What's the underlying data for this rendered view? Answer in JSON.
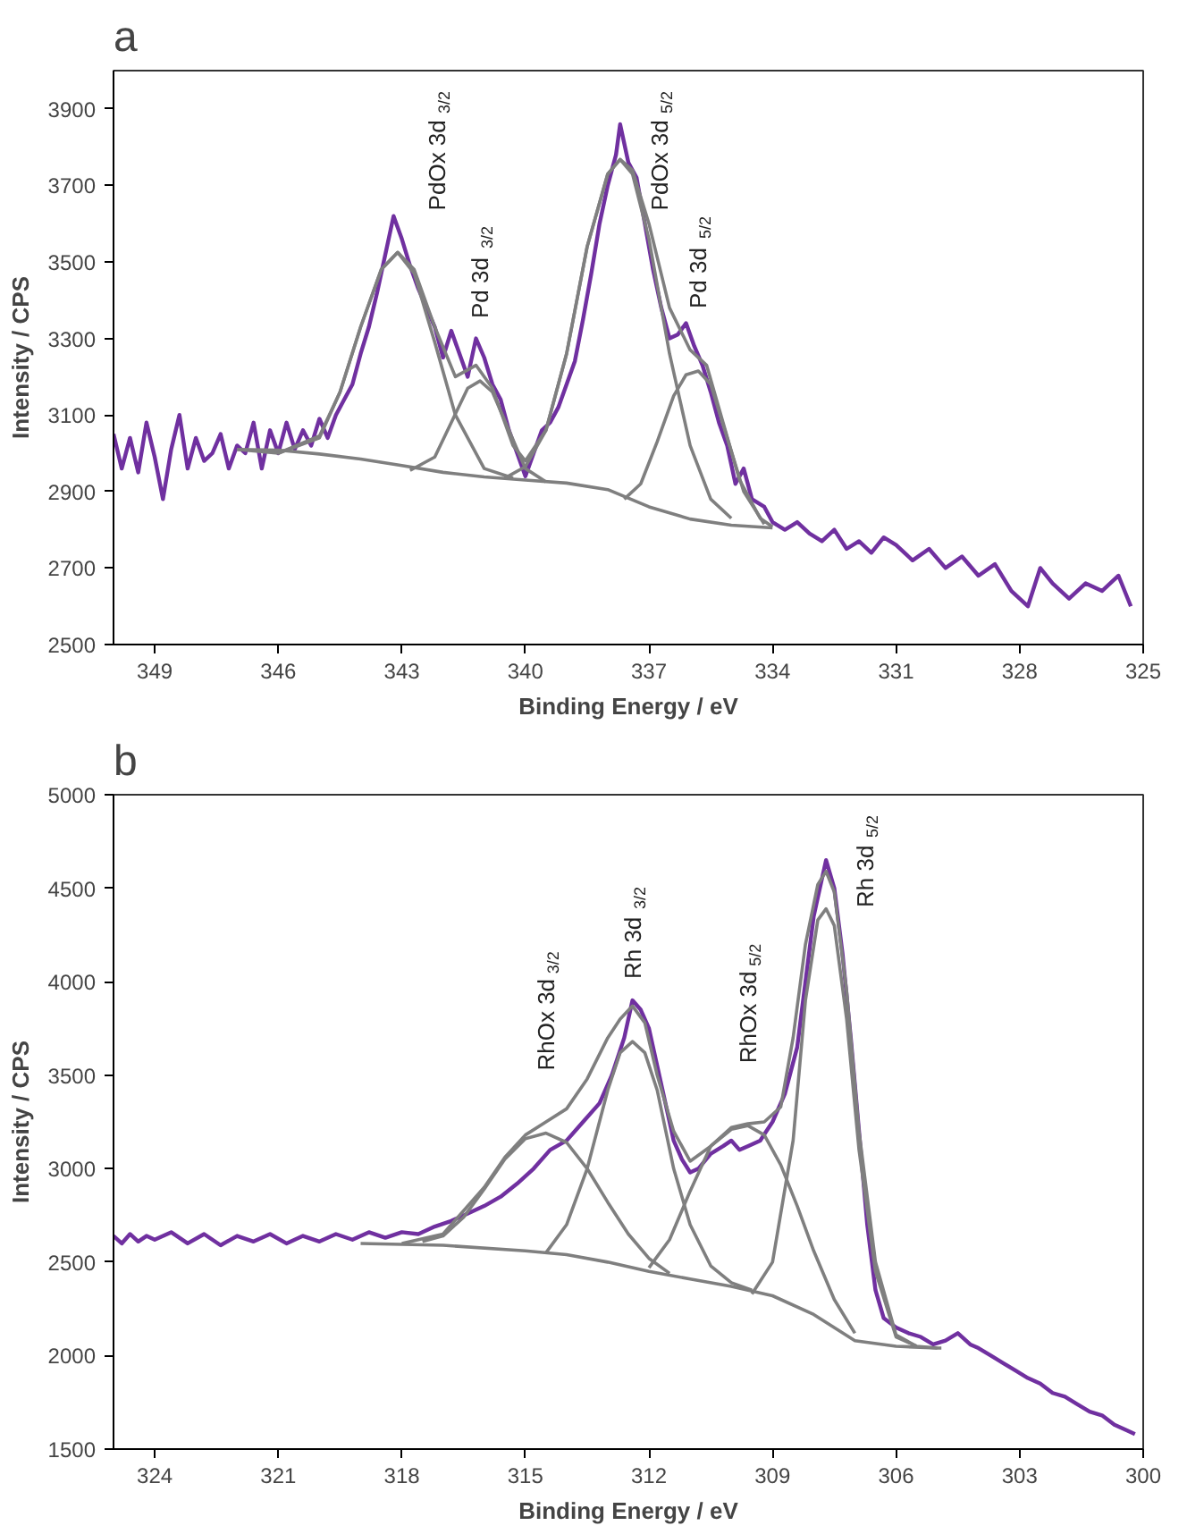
{
  "chart_data": [
    {
      "type": "line",
      "title": "a",
      "xlabel": "Binding Energy / eV",
      "ylabel": "Intensity / CPS",
      "xlim": [
        350,
        325
      ],
      "xticks": [
        349,
        346,
        343,
        340,
        337,
        334,
        331,
        328,
        325
      ],
      "ylim": [
        2500,
        4000
      ],
      "yticks": [
        2500,
        2700,
        2900,
        3100,
        3300,
        3500,
        3700,
        3900
      ],
      "grid": false,
      "annotations": [
        {
          "text": "PdOx 3d$_{3/2}$",
          "x": 343.1,
          "y": 3525
        },
        {
          "text": "Pd 3d$_{3/2}$",
          "x": 341.1,
          "y": 3189
        },
        {
          "text": "PdOx 3d$_{5/2}$",
          "x": 337.7,
          "y": 3768
        },
        {
          "text": "Pd 3d$_{5/2}$",
          "x": 335.8,
          "y": 3215
        }
      ],
      "series": [
        {
          "color": "#7030a0",
          "x": [
            350,
            349.8,
            349.6,
            349.4,
            349.2,
            349,
            348.8,
            348.6,
            348.4,
            348.2,
            348,
            347.8,
            347.6,
            347.4,
            347.2,
            347,
            346.8,
            346.6,
            346.4,
            346.2,
            346,
            345.8,
            345.6,
            345.4,
            345.2,
            345,
            344.8,
            344.6,
            344.4,
            344.2,
            344,
            343.8,
            343.6,
            343.4,
            343.2,
            343,
            342.8,
            342.6,
            342.4,
            342.2,
            342,
            341.8,
            341.6,
            341.4,
            341.2,
            341,
            340.8,
            340.6,
            340.4,
            340.2,
            340,
            339.8,
            339.6,
            339.4,
            339.2,
            339,
            338.8,
            338.6,
            338.4,
            338.2,
            338,
            337.8,
            337.7,
            337.5,
            337.3,
            337.1,
            336.9,
            336.7,
            336.5,
            336.3,
            336.1,
            335.9,
            335.7,
            335.5,
            335.3,
            335.1,
            334.9,
            334.7,
            334.5,
            334.2,
            334,
            333.7,
            333.4,
            333.1,
            332.8,
            332.5,
            332.2,
            331.9,
            331.6,
            331.3,
            331,
            330.6,
            330.2,
            329.8,
            329.4,
            329,
            328.6,
            328.2,
            327.8,
            327.5,
            327.2,
            326.8,
            326.4,
            326,
            325.6,
            325.3
          ],
          "values": [
            3050,
            2960,
            3040,
            2950,
            3080,
            2990,
            2880,
            3010,
            3100,
            2960,
            3040,
            2980,
            3000,
            3050,
            2960,
            3020,
            3000,
            3080,
            2960,
            3060,
            3000,
            3080,
            3010,
            3060,
            3020,
            3090,
            3040,
            3100,
            3140,
            3180,
            3260,
            3330,
            3420,
            3520,
            3620,
            3560,
            3490,
            3430,
            3380,
            3330,
            3250,
            3320,
            3260,
            3200,
            3300,
            3250,
            3180,
            3140,
            3060,
            3000,
            2940,
            3000,
            3060,
            3080,
            3120,
            3180,
            3240,
            3350,
            3470,
            3600,
            3700,
            3780,
            3860,
            3760,
            3720,
            3600,
            3480,
            3380,
            3300,
            3310,
            3340,
            3280,
            3230,
            3160,
            3080,
            3020,
            2920,
            2960,
            2880,
            2860,
            2820,
            2800,
            2820,
            2790,
            2770,
            2800,
            2750,
            2770,
            2740,
            2780,
            2760,
            2720,
            2750,
            2700,
            2730,
            2680,
            2710,
            2640,
            2600,
            2700,
            2660,
            2620,
            2660,
            2640,
            2680,
            2600
          ]
        },
        {
          "color": "#7f7f7f",
          "x": [
            347,
            346,
            345,
            344,
            343,
            342,
            341,
            340,
            339,
            338,
            337,
            336,
            335,
            334
          ],
          "values": [
            3010,
            3008,
            2998,
            2985,
            2968,
            2950,
            2938,
            2930,
            2922,
            2905,
            2860,
            2828,
            2812,
            2805
          ]
        },
        {
          "color": "#7f7f7f",
          "x": [
            346,
            345,
            344.5,
            344,
            343.5,
            343.1,
            342.7,
            342.2,
            341.7,
            341,
            340.3
          ],
          "values": [
            3000,
            3040,
            3160,
            3330,
            3480,
            3525,
            3470,
            3290,
            3100,
            2960,
            2935
          ]
        },
        {
          "color": "#7f7f7f",
          "x": [
            342.8,
            342.2,
            341.8,
            341.4,
            341.1,
            340.8,
            340.4,
            340,
            339.5
          ],
          "values": [
            2955,
            2990,
            3080,
            3170,
            3189,
            3160,
            3060,
            2960,
            2925
          ]
        },
        {
          "color": "#7f7f7f",
          "x": [
            340.5,
            340,
            339.5,
            339,
            338.5,
            338,
            337.7,
            337.4,
            337,
            336.5,
            336,
            335.5,
            335
          ],
          "values": [
            2935,
            2965,
            3060,
            3260,
            3540,
            3730,
            3768,
            3730,
            3560,
            3260,
            3020,
            2880,
            2830
          ]
        },
        {
          "color": "#7f7f7f",
          "x": [
            337.6,
            337.2,
            336.8,
            336.4,
            336.1,
            335.8,
            335.5,
            335.1,
            334.7,
            334.2
          ],
          "values": [
            2880,
            2920,
            3030,
            3150,
            3205,
            3215,
            3180,
            3040,
            2900,
            2815
          ]
        },
        {
          "color": "#7f7f7f",
          "x": [
            347,
            346,
            345,
            344.5,
            344,
            343.5,
            343.1,
            342.7,
            342.2,
            341.7,
            341.2,
            340.8,
            340.3,
            340,
            339.5,
            339,
            338.5,
            338,
            337.7,
            337.4,
            337,
            336.5,
            336,
            335.6,
            335.2,
            334.8,
            334.3,
            334
          ],
          "values": [
            3010,
            3000,
            3045,
            3160,
            3330,
            3480,
            3525,
            3480,
            3330,
            3200,
            3230,
            3170,
            3020,
            2980,
            3060,
            3260,
            3540,
            3730,
            3768,
            3740,
            3600,
            3380,
            3270,
            3230,
            3080,
            2930,
            2830,
            2808
          ]
        }
      ]
    },
    {
      "type": "line",
      "title": "b",
      "xlabel": "Binding Energy / eV",
      "ylabel": "Intensity / CPS",
      "xlim": [
        325,
        300
      ],
      "xticks": [
        324,
        321,
        318,
        315,
        312,
        309,
        306,
        303,
        300
      ],
      "ylim": [
        1500,
        5000
      ],
      "yticks": [
        1500,
        2000,
        2500,
        3000,
        3500,
        4000,
        4500,
        5000
      ],
      "grid": false,
      "annotations": [
        {
          "text": "RhOx 3d$_{3/2}$",
          "x": 314.5,
          "y": 3190
        },
        {
          "text": "Rh 3d$_{3/2}$",
          "x": 312.4,
          "y": 3680
        },
        {
          "text": "RhOx 3d$_{5/2}$",
          "x": 309.6,
          "y": 3230
        },
        {
          "text": "Rh 3d$_{5/2}$",
          "x": 307.7,
          "y": 4390
        }
      ],
      "series": [
        {
          "color": "#7030a0",
          "x": [
            325,
            324.8,
            324.6,
            324.4,
            324.2,
            324,
            323.6,
            323.2,
            322.8,
            322.4,
            322,
            321.6,
            321.2,
            320.8,
            320.4,
            320,
            319.6,
            319.2,
            318.8,
            318.4,
            318,
            317.6,
            317.2,
            316.8,
            316.4,
            316,
            315.6,
            315.2,
            314.8,
            314.4,
            314,
            313.6,
            313.2,
            312.9,
            312.6,
            312.4,
            312.2,
            312,
            311.8,
            311.6,
            311.4,
            311.2,
            311,
            310.8,
            310.5,
            310.2,
            310,
            309.8,
            309.6,
            309.3,
            309,
            308.7,
            308.4,
            308.2,
            308,
            307.8,
            307.7,
            307.5,
            307.3,
            307.1,
            306.9,
            306.7,
            306.5,
            306.3,
            306,
            305.7,
            305.4,
            305.1,
            304.8,
            304.5,
            304.2,
            304,
            303.7,
            303.4,
            303.1,
            302.8,
            302.5,
            302.2,
            301.9,
            301.6,
            301.3,
            301,
            300.7,
            300.4,
            300.2
          ],
          "values": [
            2640,
            2600,
            2650,
            2610,
            2640,
            2620,
            2660,
            2600,
            2650,
            2590,
            2640,
            2610,
            2650,
            2600,
            2640,
            2610,
            2650,
            2620,
            2660,
            2630,
            2660,
            2650,
            2690,
            2720,
            2760,
            2800,
            2850,
            2920,
            3000,
            3100,
            3150,
            3250,
            3350,
            3500,
            3700,
            3900,
            3850,
            3750,
            3550,
            3350,
            3150,
            3050,
            2980,
            3000,
            3080,
            3120,
            3150,
            3100,
            3120,
            3150,
            3250,
            3400,
            3650,
            4000,
            4350,
            4550,
            4650,
            4500,
            4150,
            3700,
            3200,
            2700,
            2350,
            2200,
            2150,
            2120,
            2100,
            2060,
            2080,
            2120,
            2060,
            2040,
            2000,
            1960,
            1920,
            1880,
            1850,
            1800,
            1780,
            1740,
            1700,
            1680,
            1630,
            1600,
            1580
          ]
        },
        {
          "color": "#7f7f7f",
          "x": [
            319,
            317,
            315,
            314,
            313,
            312,
            311,
            310,
            309,
            308,
            307,
            306,
            305,
            304.9
          ],
          "values": [
            2600,
            2590,
            2560,
            2540,
            2500,
            2450,
            2410,
            2370,
            2320,
            2220,
            2080,
            2050,
            2040,
            2040
          ]
        },
        {
          "color": "#7f7f7f",
          "x": [
            317.5,
            317,
            316.5,
            316,
            315.5,
            315,
            314.5,
            314,
            313.5,
            313,
            312.5,
            312,
            311.5
          ],
          "values": [
            2610,
            2640,
            2740,
            2890,
            3050,
            3160,
            3190,
            3140,
            3000,
            2820,
            2650,
            2520,
            2440
          ]
        },
        {
          "color": "#7f7f7f",
          "x": [
            314.5,
            314,
            313.5,
            313,
            312.7,
            312.4,
            312.1,
            311.8,
            311.4,
            311,
            310.5,
            310,
            309.5
          ],
          "values": [
            2550,
            2700,
            3000,
            3420,
            3620,
            3680,
            3620,
            3420,
            3000,
            2700,
            2480,
            2390,
            2350
          ]
        },
        {
          "color": "#7f7f7f",
          "x": [
            312,
            311.5,
            311,
            310.5,
            310,
            309.6,
            309.2,
            308.8,
            308.4,
            308,
            307.5,
            307
          ],
          "values": [
            2470,
            2620,
            2880,
            3120,
            3210,
            3230,
            3180,
            3020,
            2800,
            2560,
            2300,
            2120
          ]
        },
        {
          "color": "#7f7f7f",
          "x": [
            309.5,
            309,
            308.5,
            308.2,
            307.9,
            307.7,
            307.5,
            307.2,
            306.9,
            306.5,
            306,
            305.5
          ],
          "values": [
            2330,
            2500,
            3150,
            3900,
            4330,
            4390,
            4300,
            3800,
            3100,
            2450,
            2100,
            2050
          ]
        },
        {
          "color": "#7f7f7f",
          "x": [
            318,
            317,
            316,
            315.5,
            315,
            314.5,
            314,
            313.5,
            313,
            312.7,
            312.4,
            312.1,
            311.8,
            311.4,
            311,
            310.5,
            310,
            309.6,
            309.2,
            308.8,
            308.5,
            308.2,
            307.9,
            307.7,
            307.5,
            307.2,
            306.9,
            306.5,
            306,
            305.5,
            305
          ],
          "values": [
            2600,
            2650,
            2900,
            3060,
            3180,
            3250,
            3320,
            3480,
            3700,
            3800,
            3870,
            3780,
            3500,
            3200,
            3040,
            3120,
            3220,
            3240,
            3250,
            3330,
            3700,
            4200,
            4520,
            4590,
            4480,
            3950,
            3200,
            2500,
            2110,
            2050,
            2040
          ]
        }
      ]
    }
  ]
}
